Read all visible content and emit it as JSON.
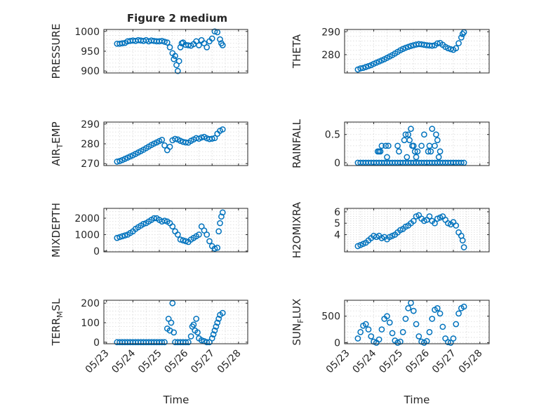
{
  "figure": {
    "title": "Figure 2 medium",
    "xlabel": "Time"
  },
  "chart_data": [
    {
      "type": "scatter",
      "title": "Figure 2 medium",
      "ylabel": "PRESSURE",
      "ylim": [
        895,
        1005
      ],
      "yticks": [
        900,
        950,
        1000
      ],
      "xticks": [
        "05/23",
        "05/24",
        "05/25",
        "05/26",
        "05/27",
        "05/28"
      ],
      "xtick_labels_shown": false,
      "x": [
        0.4,
        0.5,
        0.6,
        0.7,
        0.8,
        0.9,
        1.0,
        1.1,
        1.2,
        1.3,
        1.4,
        1.5,
        1.6,
        1.7,
        1.8,
        1.9,
        2.0,
        2.1,
        2.2,
        2.3,
        2.4,
        2.5,
        2.55,
        2.6,
        2.65,
        2.7,
        2.75,
        2.8,
        2.85,
        2.9,
        3.0,
        3.1,
        3.2,
        3.3,
        3.4,
        3.5,
        3.6,
        3.7,
        3.8,
        3.9,
        4.0,
        4.1,
        4.2,
        4.3,
        4.35,
        4.4
      ],
      "y": [
        969,
        969,
        970,
        971,
        975,
        976,
        977,
        976,
        978,
        977,
        976,
        978,
        975,
        977,
        976,
        975,
        975,
        976,
        974,
        972,
        960,
        945,
        930,
        938,
        915,
        900,
        925,
        960,
        970,
        972,
        966,
        965,
        964,
        968,
        975,
        965,
        978,
        970,
        960,
        975,
        982,
        1000,
        998,
        980,
        970,
        965
      ]
    },
    {
      "type": "scatter",
      "ylabel": "THETA",
      "ylim": [
        272,
        291
      ],
      "yticks": [
        280,
        290
      ],
      "xticks": [
        "05/23",
        "05/24",
        "05/25",
        "05/26",
        "05/27",
        "05/28"
      ],
      "xtick_labels_shown": false,
      "x": [
        0.4,
        0.5,
        0.6,
        0.7,
        0.8,
        0.9,
        1.0,
        1.1,
        1.2,
        1.3,
        1.4,
        1.5,
        1.6,
        1.7,
        1.8,
        1.9,
        2.0,
        2.1,
        2.2,
        2.3,
        2.4,
        2.5,
        2.6,
        2.7,
        2.8,
        2.9,
        3.0,
        3.1,
        3.2,
        3.3,
        3.4,
        3.5,
        3.6,
        3.7,
        3.8,
        3.9,
        4.0,
        4.1,
        4.2,
        4.3,
        4.35,
        4.4
      ],
      "y": [
        273.5,
        274,
        274.2,
        274.6,
        275,
        275.4,
        276,
        276.5,
        277,
        277.5,
        278,
        278.6,
        279.2,
        279.8,
        280.5,
        281.2,
        281.9,
        282.5,
        283,
        283.4,
        283.8,
        284.1,
        284.4,
        284.6,
        284.5,
        284.3,
        284.1,
        284,
        283.9,
        284.1,
        284.9,
        285.1,
        284.3,
        283.4,
        282.8,
        282.4,
        282.1,
        282.8,
        285,
        287.5,
        289,
        289.8
      ]
    },
    {
      "type": "scatter",
      "ylabel": "AIR_TEMP",
      "ylim": [
        269,
        291
      ],
      "yticks": [
        270,
        280,
        290
      ],
      "xticks": [
        "05/23",
        "05/24",
        "05/25",
        "05/26",
        "05/27",
        "05/28"
      ],
      "xtick_labels_shown": false,
      "x": [
        0.4,
        0.5,
        0.6,
        0.7,
        0.8,
        0.9,
        1.0,
        1.1,
        1.2,
        1.3,
        1.4,
        1.5,
        1.6,
        1.7,
        1.8,
        1.9,
        2.0,
        2.1,
        2.2,
        2.3,
        2.4,
        2.5,
        2.6,
        2.7,
        2.8,
        2.9,
        3.0,
        3.1,
        3.2,
        3.3,
        3.4,
        3.5,
        3.6,
        3.7,
        3.8,
        3.9,
        4.0,
        4.1,
        4.2,
        4.3,
        4.4
      ],
      "y": [
        271,
        271.3,
        271.8,
        272.4,
        273,
        273.6,
        274.2,
        274.9,
        275.6,
        276.3,
        277,
        277.8,
        278.6,
        279.4,
        280.1,
        280.7,
        281.4,
        282,
        279.2,
        276.8,
        278.5,
        281.8,
        282.5,
        282.2,
        281.5,
        281,
        280.7,
        280.6,
        281.5,
        282.2,
        282.9,
        282.6,
        283.2,
        283.5,
        282.8,
        282.4,
        282.6,
        282.9,
        285.1,
        286.6,
        287.3
      ]
    },
    {
      "type": "scatter",
      "ylabel": "RAINFALL",
      "ylim": [
        -0.05,
        0.72
      ],
      "yticks": [
        0,
        0.5
      ],
      "xticks": [
        "05/23",
        "05/24",
        "05/25",
        "05/26",
        "05/27",
        "05/28"
      ],
      "xtick_labels_shown": false,
      "x": [
        0.4,
        0.5,
        0.6,
        0.7,
        0.8,
        0.9,
        1.0,
        1.1,
        1.2,
        1.3,
        1.4,
        1.5,
        1.6,
        1.7,
        1.8,
        1.9,
        2.0,
        2.1,
        2.2,
        2.3,
        2.4,
        2.5,
        2.6,
        2.7,
        2.8,
        2.9,
        3.0,
        3.1,
        3.2,
        3.3,
        3.4,
        3.5,
        3.6,
        3.7,
        3.8,
        3.9,
        4.0,
        4.1,
        4.2,
        4.3,
        4.4,
        1.15,
        1.25,
        1.3,
        1.45,
        1.55,
        1.9,
        1.95,
        2.15,
        2.2,
        2.3,
        2.35,
        2.4,
        2.5,
        2.55,
        2.65,
        2.8,
        2.9,
        3.05,
        3.1,
        3.2,
        3.3,
        3.35,
        3.4,
        3.5,
        1.2,
        1.5,
        2.25,
        2.45,
        2.6,
        3.15,
        3.45
      ],
      "y": [
        0,
        0,
        0,
        0,
        0,
        0,
        0,
        0,
        0,
        0,
        0,
        0,
        0,
        0,
        0,
        0,
        0,
        0,
        0,
        0,
        0,
        0,
        0,
        0,
        0,
        0,
        0,
        0,
        0,
        0,
        0,
        0,
        0,
        0,
        0,
        0,
        0,
        0,
        0,
        0,
        0,
        0.2,
        0.2,
        0.3,
        0.3,
        0.3,
        0.3,
        0.2,
        0.4,
        0.5,
        0.5,
        0.4,
        0.6,
        0.3,
        0.2,
        0.2,
        0.3,
        0.5,
        0.2,
        0.3,
        0.6,
        0.3,
        0.5,
        0.4,
        0.2,
        0.2,
        0.1,
        0.1,
        0.3,
        0.1,
        0.2,
        0.1
      ]
    },
    {
      "type": "scatter",
      "ylabel": "MIXDEPTH",
      "ylim": [
        -50,
        2600
      ],
      "yticks": [
        0,
        1000,
        2000
      ],
      "xticks": [
        "05/23",
        "05/24",
        "05/25",
        "05/26",
        "05/27",
        "05/28"
      ],
      "xtick_labels_shown": false,
      "x": [
        0.4,
        0.5,
        0.6,
        0.7,
        0.8,
        0.9,
        1.0,
        1.1,
        1.2,
        1.3,
        1.4,
        1.5,
        1.6,
        1.7,
        1.8,
        1.9,
        2.0,
        2.1,
        2.2,
        2.3,
        2.4,
        2.5,
        2.6,
        2.7,
        2.8,
        2.9,
        3.0,
        3.1,
        3.2,
        3.3,
        3.4,
        3.5,
        3.6,
        3.7,
        3.8,
        3.9,
        4.0,
        4.1,
        4.2,
        4.25,
        4.3,
        4.35,
        4.4
      ],
      "y": [
        800,
        850,
        900,
        950,
        1000,
        1100,
        1200,
        1350,
        1450,
        1550,
        1650,
        1700,
        1800,
        1900,
        2000,
        2000,
        1900,
        1800,
        1850,
        1800,
        1700,
        1500,
        1200,
        1000,
        700,
        650,
        600,
        550,
        700,
        800,
        900,
        1000,
        1500,
        1250,
        1000,
        600,
        300,
        150,
        200,
        1200,
        1700,
        2100,
        2350
      ]
    },
    {
      "type": "scatter",
      "ylabel": "H2OMIXRA",
      "ylim": [
        2.5,
        6.3
      ],
      "yticks": [
        4,
        5,
        6
      ],
      "xticks": [
        "05/23",
        "05/24",
        "05/25",
        "05/26",
        "05/27",
        "05/28"
      ],
      "xtick_labels_shown": false,
      "x": [
        0.4,
        0.5,
        0.6,
        0.7,
        0.8,
        0.9,
        1.0,
        1.1,
        1.2,
        1.3,
        1.4,
        1.5,
        1.6,
        1.7,
        1.8,
        1.9,
        2.0,
        2.1,
        2.2,
        2.3,
        2.4,
        2.5,
        2.6,
        2.7,
        2.8,
        2.9,
        3.0,
        3.1,
        3.2,
        3.3,
        3.4,
        3.5,
        3.6,
        3.7,
        3.8,
        3.9,
        4.0,
        4.1,
        4.2,
        4.3,
        4.35,
        4.4
      ],
      "y": [
        3.0,
        3.1,
        3.2,
        3.3,
        3.5,
        3.7,
        3.9,
        3.8,
        3.9,
        3.7,
        3.8,
        3.6,
        3.8,
        3.9,
        4.0,
        4.2,
        4.4,
        4.5,
        4.7,
        4.8,
        5.0,
        5.2,
        5.6,
        5.7,
        5.4,
        5.2,
        5.3,
        5.6,
        5.2,
        5.0,
        5.4,
        5.5,
        5.6,
        5.3,
        5.0,
        4.9,
        5.1,
        4.8,
        4.2,
        3.9,
        3.5,
        2.9
      ]
    },
    {
      "type": "scatter",
      "ylabel": "TERR_MSL",
      "ylim": [
        -8,
        215
      ],
      "yticks": [
        0,
        100,
        200
      ],
      "xticks": [
        "05/23",
        "05/24",
        "05/25",
        "05/26",
        "05/27",
        "05/28"
      ],
      "xtick_labels": [
        "05/23",
        "05/24",
        "05/25",
        "05/26",
        "05/27",
        "05/28"
      ],
      "x": [
        0.4,
        0.5,
        0.6,
        0.7,
        0.8,
        0.9,
        1.0,
        1.1,
        1.2,
        1.3,
        1.4,
        1.5,
        1.6,
        1.7,
        1.8,
        1.9,
        2.0,
        2.1,
        2.2,
        2.3,
        2.35,
        2.4,
        2.45,
        2.5,
        2.55,
        2.6,
        2.7,
        2.8,
        2.9,
        3.0,
        3.1,
        3.2,
        3.25,
        3.3,
        3.35,
        3.4,
        3.45,
        3.5,
        3.6,
        3.7,
        3.8,
        3.9,
        4.0,
        4.05,
        4.1,
        4.15,
        4.2,
        4.25,
        4.3,
        4.4
      ],
      "y": [
        0,
        0,
        0,
        0,
        0,
        0,
        0,
        0,
        0,
        0,
        0,
        0,
        0,
        0,
        0,
        0,
        0,
        0,
        0,
        70,
        120,
        60,
        100,
        200,
        50,
        0,
        0,
        0,
        0,
        0,
        0,
        30,
        80,
        90,
        60,
        120,
        50,
        20,
        10,
        5,
        0,
        0,
        20,
        40,
        60,
        80,
        100,
        120,
        140,
        150
      ]
    },
    {
      "type": "scatter",
      "ylabel": "SUN_FLUX",
      "ylim": [
        -20,
        800
      ],
      "yticks": [
        0,
        500
      ],
      "xticks": [
        "05/23",
        "05/24",
        "05/25",
        "05/26",
        "05/27",
        "05/28"
      ],
      "xtick_labels": [
        "05/23",
        "05/24",
        "05/25",
        "05/26",
        "05/27",
        "05/28"
      ],
      "x": [
        0.4,
        0.5,
        0.6,
        0.7,
        0.8,
        0.9,
        1.0,
        1.1,
        1.2,
        1.3,
        1.4,
        1.5,
        1.6,
        1.7,
        1.8,
        1.9,
        2.0,
        2.1,
        2.2,
        2.3,
        2.4,
        2.5,
        2.6,
        2.7,
        2.8,
        2.9,
        3.0,
        3.1,
        3.2,
        3.3,
        3.4,
        3.5,
        3.6,
        3.7,
        3.8,
        3.9,
        4.0,
        4.1,
        4.2,
        4.3,
        4.4
      ],
      "y": [
        80,
        200,
        320,
        350,
        250,
        120,
        20,
        0,
        60,
        250,
        450,
        500,
        380,
        180,
        40,
        0,
        20,
        200,
        450,
        650,
        750,
        600,
        350,
        120,
        20,
        0,
        30,
        200,
        450,
        620,
        650,
        550,
        300,
        80,
        10,
        0,
        80,
        350,
        550,
        650,
        680
      ]
    }
  ]
}
